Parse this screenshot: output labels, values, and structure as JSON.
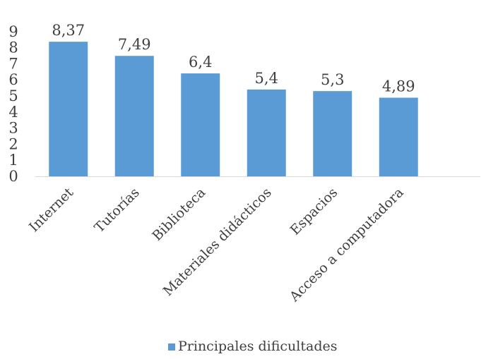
{
  "chart_data": {
    "type": "bar",
    "categories": [
      "Internet",
      "Tutorías",
      "Biblioteca",
      "Materiales didácticos",
      "Espacios",
      "Acceso a computadora"
    ],
    "series": [
      {
        "name": "Principales dificultades",
        "values": [
          8.37,
          7.49,
          6.4,
          5.4,
          5.3,
          4.89
        ],
        "value_labels": [
          "8,37",
          "7,49",
          "6,4",
          "5,4",
          "5,3",
          "4,89"
        ],
        "color": "#5B9BD5"
      }
    ],
    "yticks": [
      "0",
      "1",
      "2",
      "3",
      "4",
      "5",
      "6",
      "7",
      "8",
      "9"
    ],
    "ylim": [
      0,
      9
    ],
    "grid": false,
    "legend": {
      "position": "bottom",
      "label": "Principales dificultades"
    }
  }
}
